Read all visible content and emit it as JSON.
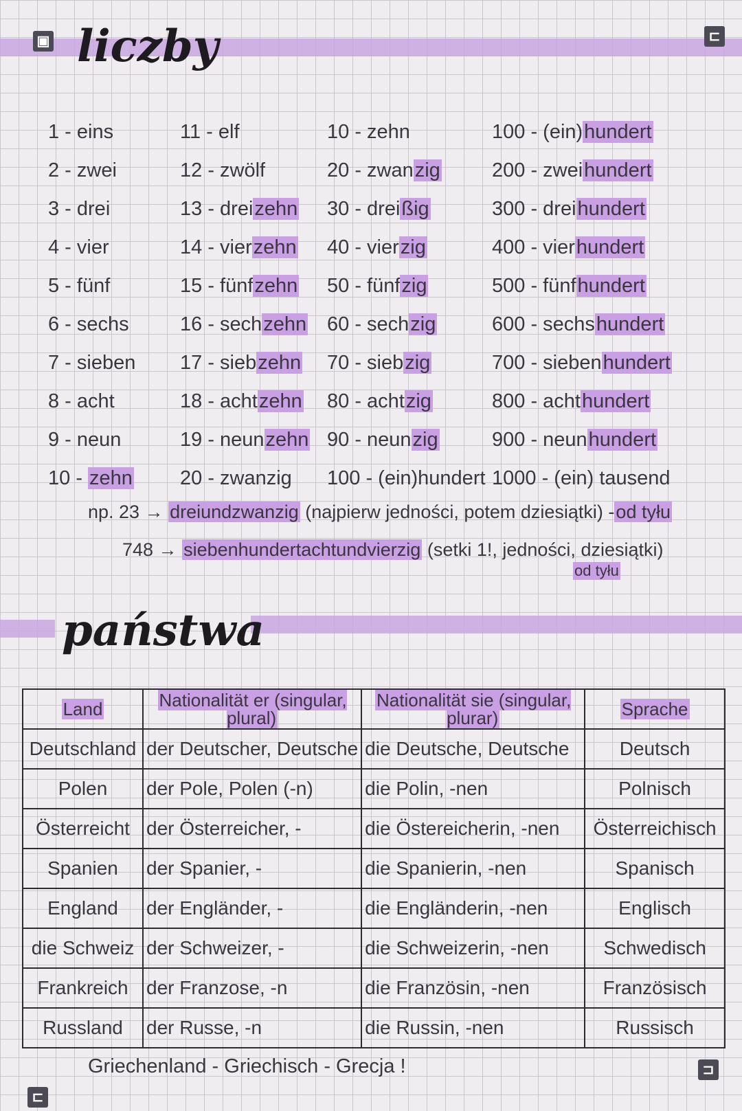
{
  "sections": {
    "numbers_title": "liczby",
    "countries_title": "państwa"
  },
  "colors": {
    "highlight": "#c9a0e4",
    "grid": "#c9c6cc",
    "paper": "#efedf0"
  },
  "numbers": [
    [
      {
        "t": "1 - eins",
        "h": ""
      },
      {
        "t": "2 - zwei",
        "h": ""
      },
      {
        "t": "3 - drei",
        "h": ""
      },
      {
        "t": "4 - vier",
        "h": ""
      },
      {
        "t": "5 - fünf",
        "h": ""
      },
      {
        "t": "6 - sechs",
        "h": ""
      },
      {
        "t": "7 - sieben",
        "h": ""
      },
      {
        "t": "8 - acht",
        "h": ""
      },
      {
        "t": "9 - neun",
        "h": ""
      },
      {
        "t": "10 - ",
        "h": "zehn"
      }
    ],
    [
      {
        "t": "11 - elf",
        "h": ""
      },
      {
        "t": "12 - zwölf",
        "h": ""
      },
      {
        "t": "13 - drei",
        "h": "zehn"
      },
      {
        "t": "14 - vier",
        "h": "zehn"
      },
      {
        "t": "15 - fünf",
        "h": "zehn"
      },
      {
        "t": "16 - sech",
        "h": "zehn"
      },
      {
        "t": "17 - sieb",
        "h": "zehn"
      },
      {
        "t": "18 - acht",
        "h": "zehn"
      },
      {
        "t": "19 - neun",
        "h": "zehn"
      },
      {
        "t": "20 - zwanzig",
        "h": ""
      }
    ],
    [
      {
        "t": "10 - zehn",
        "h": ""
      },
      {
        "t": "20 - zwan",
        "h": "zig"
      },
      {
        "t": "30 - drei",
        "h": "ßig"
      },
      {
        "t": "40 - vier",
        "h": "zig"
      },
      {
        "t": "50 - fünf",
        "h": "zig"
      },
      {
        "t": "60 - sech",
        "h": "zig"
      },
      {
        "t": "70 - sieb",
        "h": "zig"
      },
      {
        "t": "80 - acht",
        "h": "zig"
      },
      {
        "t": "90 - neun",
        "h": "zig"
      },
      {
        "t": "100 - (ein)hundert",
        "h": ""
      }
    ],
    [
      {
        "t": "100 - (ein)",
        "h": "hundert"
      },
      {
        "t": "200 - zwei",
        "h": "hundert"
      },
      {
        "t": "300 - drei",
        "h": "hundert"
      },
      {
        "t": "400 - vier",
        "h": "hundert"
      },
      {
        "t": "500 - fünf",
        "h": "hundert"
      },
      {
        "t": "600 - sechs",
        "h": "hundert"
      },
      {
        "t": "700 - sieben",
        "h": "hundert"
      },
      {
        "t": "800 - acht",
        "h": "hundert"
      },
      {
        "t": "900 - neun",
        "h": "hundert"
      },
      {
        "t": "1000 - (ein) tausend",
        "h": ""
      }
    ]
  ],
  "notes": {
    "ex1_prefix": "np. 23 →",
    "ex1_word": "dreiundzwanzig",
    "ex1_rule": "(najpierw jedności, potem dziesiątki) -",
    "ex1_tail": "od tyłu",
    "ex2_prefix": "748 →",
    "ex2_word": "siebenhundertachtundvierzig",
    "ex2_rule": "(setki 1!, jedności, dziesiątki)",
    "ex2_tail": "od tyłu"
  },
  "table": {
    "headers": [
      "Land",
      "Nationalität er (singular, plural)",
      "Nationalität sie (singular, plurar)",
      "Sprache"
    ],
    "rows": [
      [
        "Deutschland",
        "der Deutscher, Deutsche",
        "die Deutsche, Deutsche",
        "Deutsch"
      ],
      [
        "Polen",
        "der Pole, Polen (-n)",
        "die Polin, -nen",
        "Polnisch"
      ],
      [
        "Österreicht",
        "der Österreicher, -",
        "die Östereicherin, -nen",
        "Österreichisch"
      ],
      [
        "Spanien",
        "der Spanier, -",
        "die Spanierin, -nen",
        "Spanisch"
      ],
      [
        "England",
        "der Engländer, -",
        "die Engländerin, -nen",
        "Englisch"
      ],
      [
        "die Schweiz",
        "der Schweizer, -",
        "die Schweizerin, -nen",
        "Schwedisch"
      ],
      [
        "Frankreich",
        "der Franzose, -n",
        "die Französin, -nen",
        "Französisch"
      ],
      [
        "Russland",
        "der Russe, -n",
        "die Russin, -nen",
        "Russisch"
      ]
    ]
  },
  "footer_note": "Griechenland - Griechisch - Grecja !"
}
